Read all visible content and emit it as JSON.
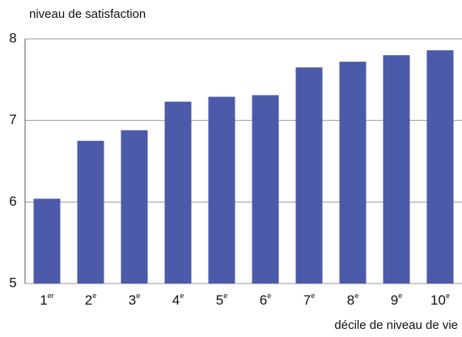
{
  "chart_data": {
    "type": "bar",
    "y_label": "niveau de satisfaction",
    "x_label": "décile de niveau de vie",
    "categories": [
      "1er",
      "2e",
      "3e",
      "4e",
      "5e",
      "6e",
      "7e",
      "8e",
      "9e",
      "10e"
    ],
    "values": [
      6.04,
      6.75,
      6.88,
      7.23,
      7.29,
      7.31,
      7.65,
      7.72,
      7.8,
      7.86
    ],
    "color": "#4b5aa9",
    "ylim": [
      5,
      8
    ],
    "yticks": [
      5,
      6,
      7,
      8
    ],
    "grid": true
  }
}
